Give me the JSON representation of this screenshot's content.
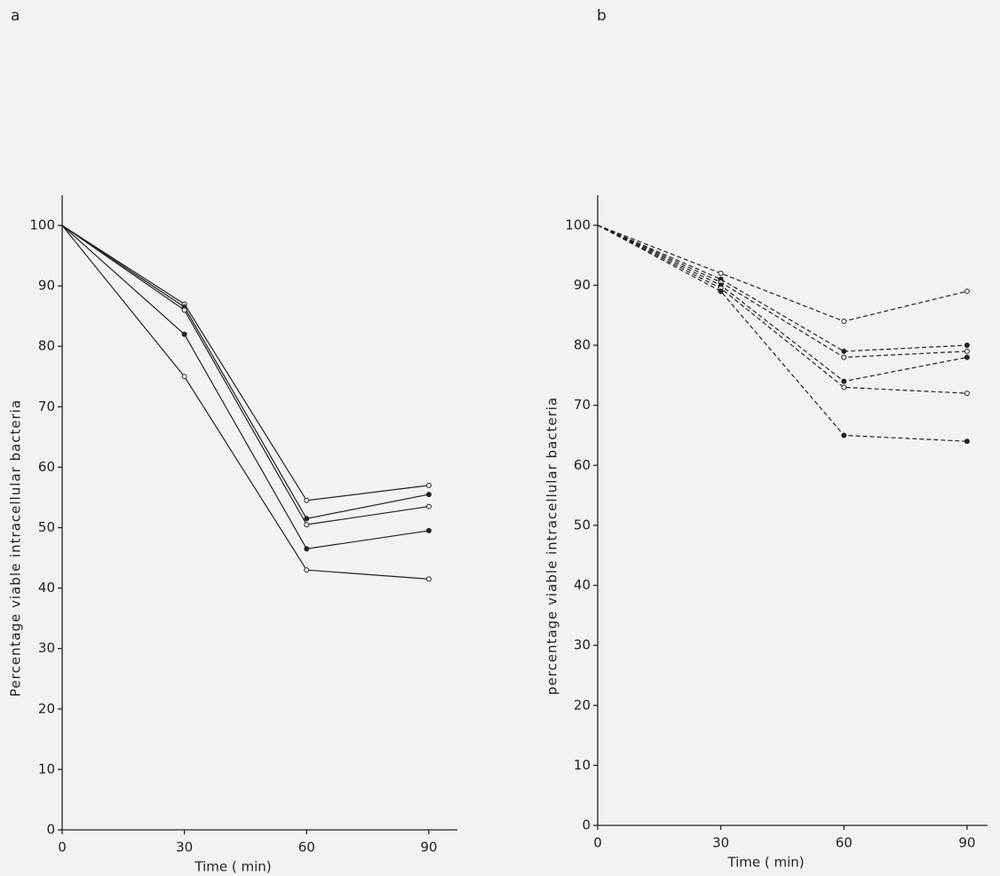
{
  "chart_data": [
    {
      "type": "line",
      "title": "a",
      "x_label": "Time ( min)",
      "y_label": "Percentage viable intracellular bacteria",
      "x": [
        0,
        30,
        60,
        90
      ],
      "xlim": [
        0,
        97
      ],
      "xticks": [
        0,
        30,
        60,
        90
      ],
      "ylim": [
        0,
        105
      ],
      "yticks": [
        0,
        10,
        20,
        30,
        40,
        50,
        60,
        70,
        80,
        90,
        100
      ],
      "line_style": "solid",
      "series": [
        {
          "color": "#222222",
          "values": [
            100,
            87,
            54.5,
            57
          ]
        },
        {
          "color": "#222222",
          "values": [
            100,
            86.5,
            51.5,
            55.5
          ]
        },
        {
          "color": "#222222",
          "values": [
            100,
            86,
            50.5,
            53.5
          ]
        },
        {
          "color": "#222222",
          "values": [
            100,
            82,
            46.5,
            49.5
          ]
        },
        {
          "color": "#222222",
          "values": [
            100,
            75,
            43,
            41.5
          ]
        }
      ]
    },
    {
      "type": "line",
      "title": "b",
      "x_label": "Time ( min)",
      "y_label": "percentage viable intracellular bacteria",
      "x": [
        0,
        30,
        60,
        90
      ],
      "xlim": [
        0,
        95
      ],
      "xticks": [
        0,
        30,
        60,
        90
      ],
      "ylim": [
        0,
        105
      ],
      "yticks": [
        0,
        10,
        20,
        30,
        40,
        50,
        60,
        70,
        80,
        90,
        100
      ],
      "line_style": "dashed",
      "series": [
        {
          "color": "#222222",
          "values": [
            100,
            92,
            84,
            89
          ]
        },
        {
          "color": "#222222",
          "values": [
            100,
            91,
            79,
            80
          ]
        },
        {
          "color": "#222222",
          "values": [
            100,
            90.5,
            78,
            79
          ]
        },
        {
          "color": "#222222",
          "values": [
            100,
            90,
            74,
            78
          ]
        },
        {
          "color": "#222222",
          "values": [
            100,
            89.5,
            73,
            72
          ]
        },
        {
          "color": "#222222",
          "values": [
            100,
            89,
            65,
            64
          ]
        }
      ]
    }
  ]
}
